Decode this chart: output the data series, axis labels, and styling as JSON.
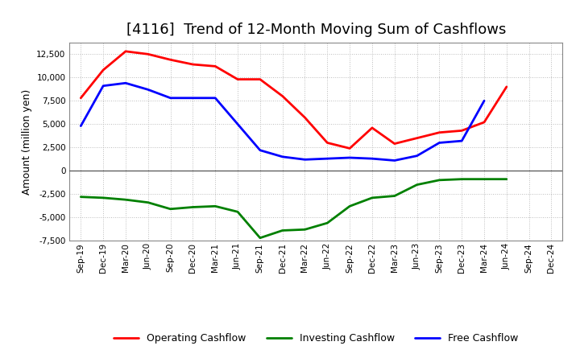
{
  "title": "[4116]  Trend of 12-Month Moving Sum of Cashflows",
  "ylabel": "Amount (million yen)",
  "ylim": [
    -7500,
    13750
  ],
  "yticks": [
    -7500,
    -5000,
    -2500,
    0,
    2500,
    5000,
    7500,
    10000,
    12500
  ],
  "x_labels": [
    "Sep-19",
    "Dec-19",
    "Mar-20",
    "Jun-20",
    "Sep-20",
    "Dec-20",
    "Mar-21",
    "Jun-21",
    "Sep-21",
    "Dec-21",
    "Mar-22",
    "Jun-22",
    "Sep-22",
    "Dec-22",
    "Mar-23",
    "Jun-23",
    "Sep-23",
    "Dec-23",
    "Mar-24",
    "Jun-24",
    "Sep-24",
    "Dec-24"
  ],
  "operating": [
    7800,
    10800,
    12800,
    12500,
    11900,
    11400,
    11200,
    9800,
    9800,
    8000,
    5700,
    3000,
    2400,
    4600,
    2900,
    3500,
    4100,
    4300,
    5200,
    9000,
    null,
    null
  ],
  "investing": [
    -2800,
    -2900,
    -3100,
    -3400,
    -4100,
    -3900,
    -3800,
    -4400,
    -7200,
    -6400,
    -6300,
    -5600,
    -3800,
    -2900,
    -2700,
    -1500,
    -1000,
    -900,
    -900,
    -900,
    null,
    null
  ],
  "free": [
    4800,
    9100,
    9400,
    8700,
    7800,
    7800,
    7800,
    5000,
    2200,
    1500,
    1200,
    1300,
    1400,
    1300,
    1100,
    1600,
    3000,
    3200,
    7500,
    null,
    null,
    null
  ],
  "op_color": "#FF0000",
  "inv_color": "#008000",
  "free_color": "#0000FF",
  "bg_color": "#FFFFFF",
  "plot_bg_color": "#FFFFFF",
  "grid_color": "#BBBBBB",
  "title_fontsize": 13,
  "label_fontsize": 9,
  "tick_fontsize": 7.5,
  "legend_fontsize": 9,
  "linewidth": 2.0
}
